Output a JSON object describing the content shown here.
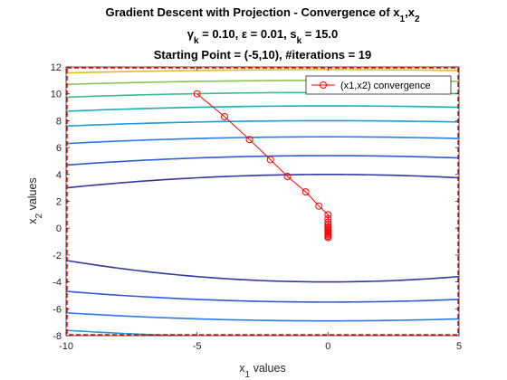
{
  "chart_data": {
    "type": "line",
    "title_lines": [
      {
        "parts": [
          {
            "t": "Gradient Descent with Projection - Convergence of x"
          },
          {
            "t": "1",
            "sub": true
          },
          {
            "t": ",x"
          },
          {
            "t": "2",
            "sub": true
          }
        ]
      },
      {
        "parts": [
          {
            "t": "γ"
          },
          {
            "t": "k",
            "sub": true
          },
          {
            "t": " = 0.10,  ε = 0.01, s"
          },
          {
            "t": "k",
            "sub": true
          },
          {
            "t": " = 15.0"
          }
        ]
      },
      {
        "parts": [
          {
            "t": "Starting Point = (-5,10),  #iterations = 19"
          }
        ]
      }
    ],
    "xlabel": {
      "base": "x",
      "sub": "1",
      "rest": " values"
    },
    "ylabel": {
      "base": "x",
      "sub": "2",
      "rest": " values"
    },
    "xlim": [
      -10,
      5
    ],
    "ylim": [
      -8,
      12
    ],
    "xticks": [
      -10,
      -5,
      0,
      5
    ],
    "yticks": [
      -8,
      -6,
      -4,
      -2,
      0,
      2,
      4,
      6,
      8,
      10,
      12
    ],
    "feasible_region_border": {
      "color": "#ff0000",
      "style": "dashed"
    },
    "legend": {
      "location": "top-right",
      "entries": [
        "(x1,x2) convergence"
      ]
    },
    "series": [
      {
        "name": "(x1,x2) convergence",
        "color": "#ff0000",
        "marker": "circle",
        "x": [
          -5,
          -3.95,
          -3.0,
          -2.2,
          -1.55,
          -0.85,
          -0.35,
          0,
          0,
          0,
          0,
          0,
          0,
          0,
          0,
          0,
          0,
          0,
          0,
          0
        ],
        "y": [
          10,
          8.3,
          6.6,
          5.1,
          3.85,
          2.7,
          1.65,
          1.0,
          0.7,
          0.45,
          0.25,
          0.1,
          0,
          -0.1,
          -0.2,
          -0.3,
          -0.4,
          -0.5,
          -0.6,
          -0.7
        ]
      }
    ],
    "contours": {
      "colormap": "parula",
      "levels": [
        {
          "vertex_y": 4.0,
          "y_at_x_min": 3.0,
          "color": "#2f3aa0"
        },
        {
          "vertex_y": 5.4,
          "y_at_x_min": 4.7,
          "color": "#2f5bd6"
        },
        {
          "vertex_y": 6.8,
          "y_at_x_min": 6.3,
          "color": "#2f7ae8"
        },
        {
          "vertex_y": 8.0,
          "y_at_x_min": 7.6,
          "color": "#1f9ad6"
        },
        {
          "vertex_y": 9.1,
          "y_at_x_min": 8.7,
          "color": "#14b1b6"
        },
        {
          "vertex_y": 10.1,
          "y_at_x_min": 9.75,
          "color": "#3bbd8a"
        },
        {
          "vertex_y": 11.0,
          "y_at_x_min": 10.7,
          "color": "#8bc453"
        },
        {
          "vertex_y": 11.8,
          "y_at_x_min": 11.55,
          "color": "#d8c227"
        },
        {
          "vertex_y": -4.0,
          "y_at_x_min": -2.4,
          "color": "#2f3aa0"
        },
        {
          "vertex_y": -5.5,
          "y_at_x_min": -4.7,
          "color": "#2f5bd6"
        },
        {
          "vertex_y": -6.9,
          "y_at_x_min": -6.3,
          "color": "#2f7ae8"
        },
        {
          "vertex_y": -8.2,
          "y_at_x_min": -7.6,
          "color": "#1f9ad6"
        }
      ]
    }
  }
}
